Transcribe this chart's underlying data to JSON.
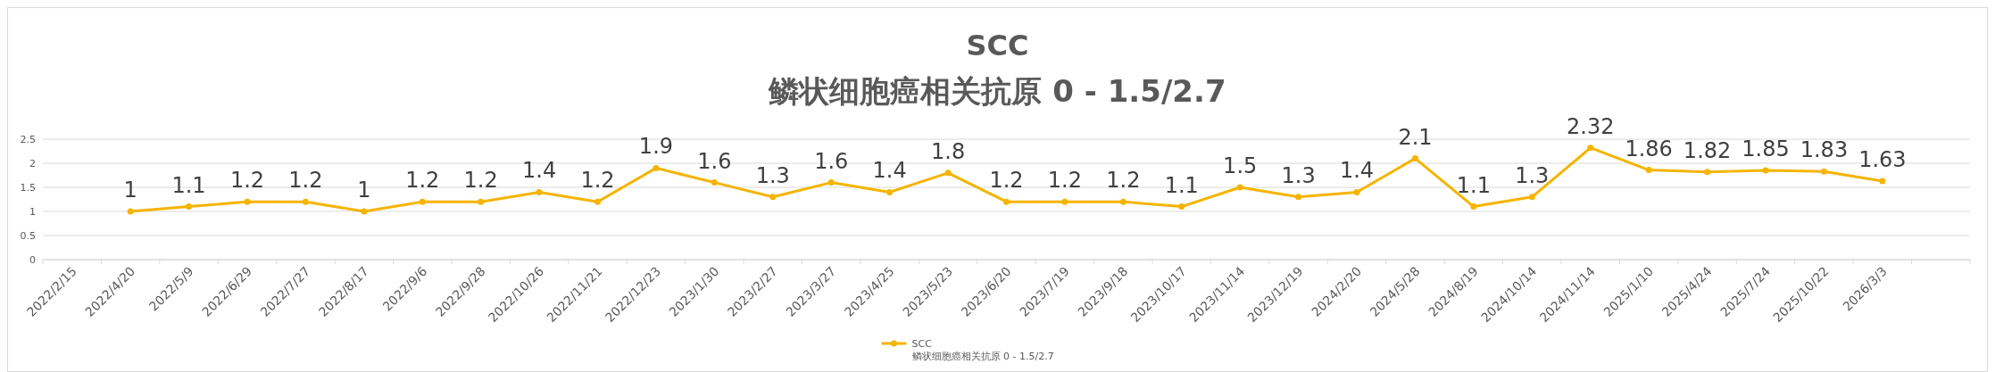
{
  "chart_data": {
    "type": "line",
    "title": "SCC",
    "subtitle": "鳞状细胞癌相关抗原 0 - 1.5/2.7",
    "categories": [
      "2022/2/15",
      "2022/4/20",
      "2022/5/9",
      "2022/6/29",
      "2022/7/27",
      "2022/8/17",
      "2022/9/6",
      "2022/9/28",
      "2022/10/26",
      "2022/11/21",
      "2022/12/23",
      "2023/1/30",
      "2023/2/27",
      "2023/3/27",
      "2023/4/25",
      "2023/5/23",
      "2023/6/20",
      "2023/7/19",
      "2023/9/18",
      "2023/10/17",
      "2023/11/14",
      "2023/12/19",
      "2024/2/20",
      "2024/5/28",
      "2024/8/19",
      "2024/10/14",
      "2024/11/14",
      "2025/1/10",
      "2025/4/24",
      "2025/7/24",
      "2025/10/22",
      "2026/3/3",
      null
    ],
    "series": [
      {
        "name": "SCC\n鳞状细胞癌相关抗原 0 - 1.5/2.7",
        "color": "#f5b400",
        "values": [
          null,
          1,
          1.1,
          1.2,
          1.2,
          1,
          1.2,
          1.2,
          1.4,
          1.2,
          1.9,
          1.6,
          1.3,
          1.6,
          1.4,
          1.8,
          1.2,
          1.2,
          1.2,
          1.1,
          1.5,
          1.3,
          1.4,
          2.1,
          1.1,
          1.3,
          2.32,
          1.86,
          1.82,
          1.85,
          1.83,
          1.63,
          null
        ]
      }
    ],
    "ylim": [
      0,
      2.5
    ],
    "yticks": [
      0,
      0.5,
      1,
      1.5,
      2,
      2.5
    ],
    "grid": "y",
    "legend": "bottom",
    "data_labels": true,
    "marker": "circle",
    "line_style": "solid"
  }
}
